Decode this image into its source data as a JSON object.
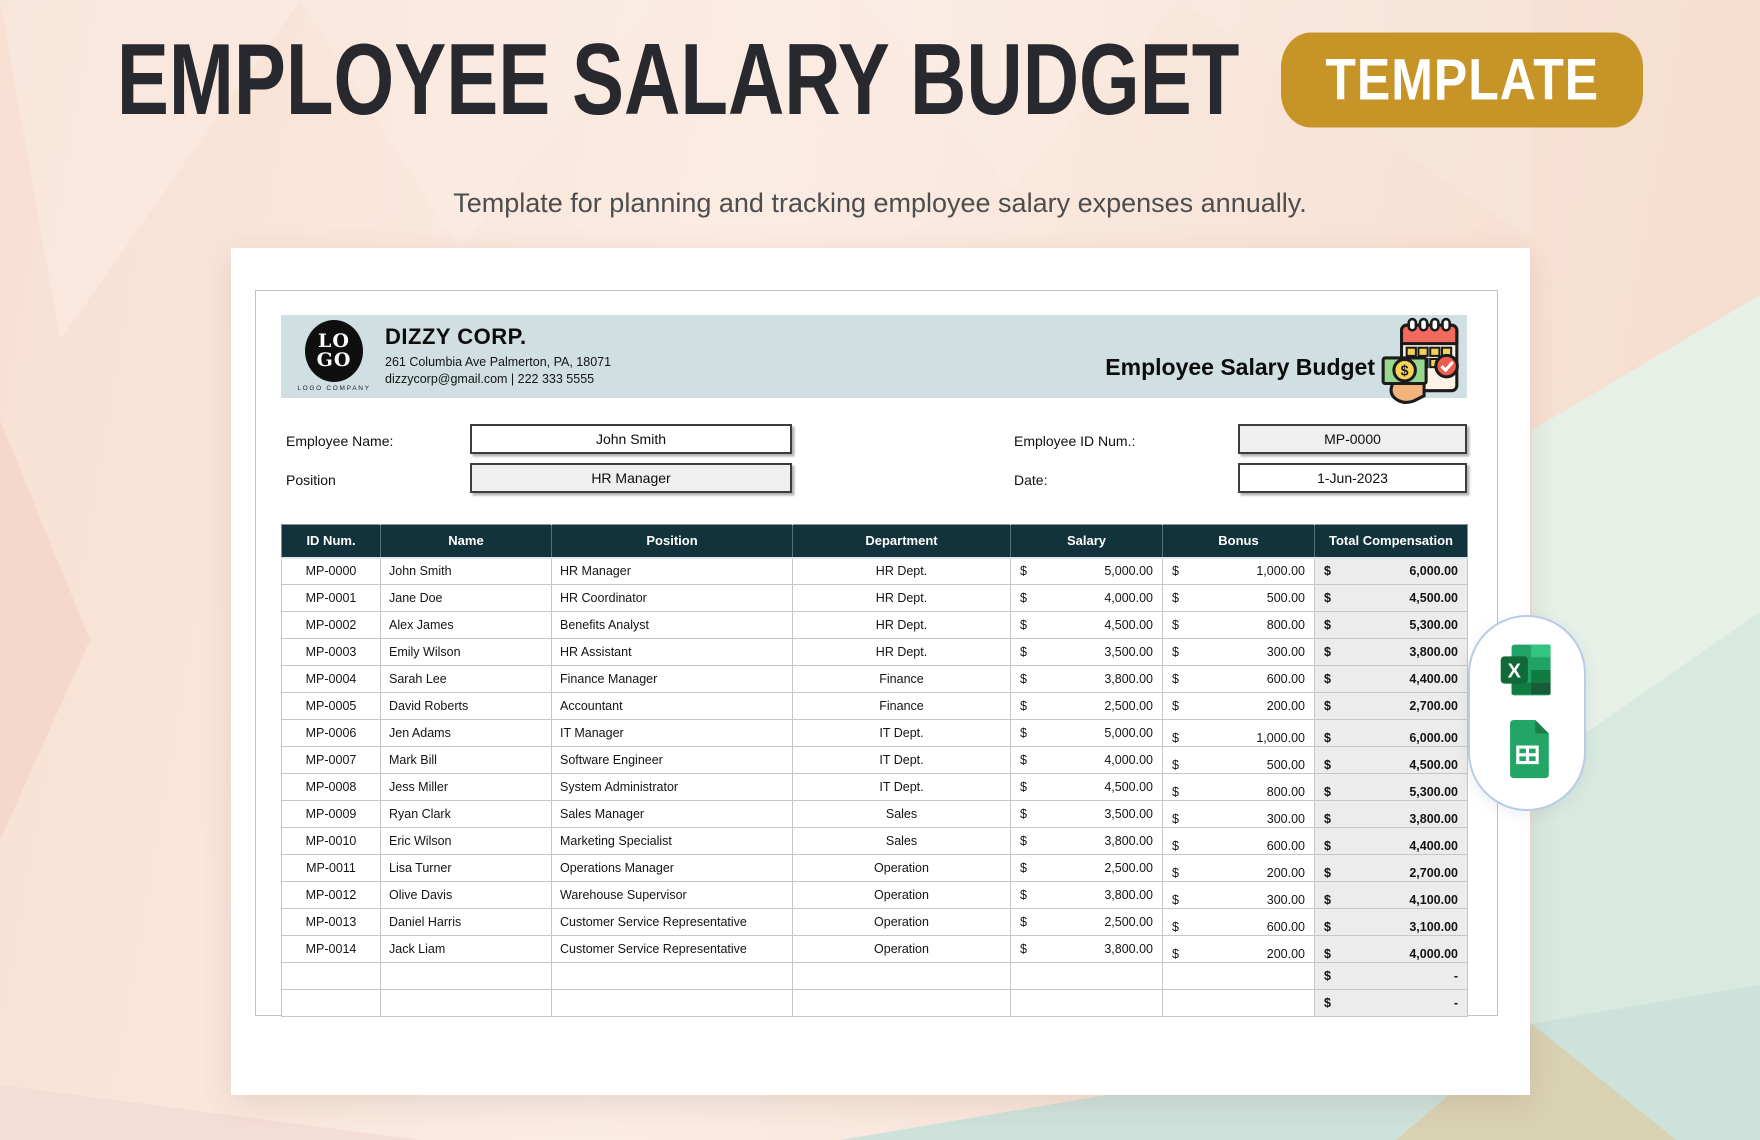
{
  "page": {
    "title": "EMPLOYEE SALARY BUDGET",
    "badge": "TEMPLATE",
    "subtitle": "Template for planning and tracking employee salary expenses annually."
  },
  "company": {
    "logo_line1": "LO",
    "logo_line2": "GO",
    "logo_caption": "LOGO COMPANY",
    "name": "DIZZY CORP.",
    "address": "261 Columbia Ave Palmerton, PA, 18071",
    "contact": "dizzycorp@gmail.com | 222 333 5555",
    "sheet_title": "Employee Salary Budget"
  },
  "form": {
    "employee_name_label": "Employee Name:",
    "employee_name_value": "John Smith",
    "position_label": "Position",
    "position_value": "HR Manager",
    "employee_id_label": "Employee ID Num.:",
    "employee_id_value": "MP-0000",
    "date_label": "Date:",
    "date_value": "1-Jun-2023"
  },
  "table": {
    "currency": "$",
    "headers": [
      "ID Num.",
      "Name",
      "Position",
      "Department",
      "Salary",
      "Bonus",
      "Total Compensation"
    ],
    "rows": [
      {
        "id": "MP-0000",
        "name": "John Smith",
        "position": "HR Manager",
        "department": "HR Dept.",
        "salary": "5,000.00",
        "bonus": "1,000.00",
        "total": "6,000.00"
      },
      {
        "id": "MP-0001",
        "name": "Jane Doe",
        "position": "HR Coordinator",
        "department": "HR Dept.",
        "salary": "4,000.00",
        "bonus": "500.00",
        "total": "4,500.00"
      },
      {
        "id": "MP-0002",
        "name": "Alex James",
        "position": "Benefits Analyst",
        "department": "HR Dept.",
        "salary": "4,500.00",
        "bonus": "800.00",
        "total": "5,300.00"
      },
      {
        "id": "MP-0003",
        "name": "Emily Wilson",
        "position": "HR Assistant",
        "department": "HR Dept.",
        "salary": "3,500.00",
        "bonus": "300.00",
        "total": "3,800.00"
      },
      {
        "id": "MP-0004",
        "name": "Sarah Lee",
        "position": "Finance Manager",
        "department": "Finance",
        "salary": "3,800.00",
        "bonus": "600.00",
        "total": "4,400.00"
      },
      {
        "id": "MP-0005",
        "name": "David Roberts",
        "position": "Accountant",
        "department": "Finance",
        "salary": "2,500.00",
        "bonus": "200.00",
        "total": "2,700.00"
      },
      {
        "id": "MP-0006",
        "name": "Jen Adams",
        "position": "IT Manager",
        "department": "IT Dept.",
        "salary": "5,000.00",
        "bonus": "1,000.00",
        "total": "6,000.00"
      },
      {
        "id": "MP-0007",
        "name": "Mark Bill",
        "position": "Software Engineer",
        "department": "IT Dept.",
        "salary": "4,000.00",
        "bonus": "500.00",
        "total": "4,500.00"
      },
      {
        "id": "MP-0008",
        "name": "Jess Miller",
        "position": "System Administrator",
        "department": "IT Dept.",
        "salary": "4,500.00",
        "bonus": "800.00",
        "total": "5,300.00"
      },
      {
        "id": "MP-0009",
        "name": "Ryan Clark",
        "position": "Sales Manager",
        "department": "Sales",
        "salary": "3,500.00",
        "bonus": "300.00",
        "total": "3,800.00"
      },
      {
        "id": "MP-0010",
        "name": "Eric Wilson",
        "position": "Marketing Specialist",
        "department": "Sales",
        "salary": "3,800.00",
        "bonus": "600.00",
        "total": "4,400.00"
      },
      {
        "id": "MP-0011",
        "name": "Lisa Turner",
        "position": "Operations Manager",
        "department": "Operation",
        "salary": "2,500.00",
        "bonus": "200.00",
        "total": "2,700.00"
      },
      {
        "id": "MP-0012",
        "name": "Olive Davis",
        "position": "Warehouse Supervisor",
        "department": "Operation",
        "salary": "3,800.00",
        "bonus": "300.00",
        "total": "4,100.00"
      },
      {
        "id": "MP-0013",
        "name": "Daniel Harris",
        "position": "Customer Service Representative",
        "department": "Operation",
        "salary": "2,500.00",
        "bonus": "600.00",
        "total": "3,100.00"
      },
      {
        "id": "MP-0014",
        "name": "Jack Liam",
        "position": "Customer Service Representative",
        "department": "Operation",
        "salary": "3,800.00",
        "bonus": "200.00",
        "total": "4,000.00"
      }
    ],
    "empty_rows": [
      "-",
      "-"
    ]
  },
  "colors": {
    "accent_gold": "#c79428",
    "table_header_teal": "#12333b",
    "letterhead_band_blue": "#d0dfe2",
    "excel_green": "#107c41",
    "sheets_green": "#23a566"
  }
}
